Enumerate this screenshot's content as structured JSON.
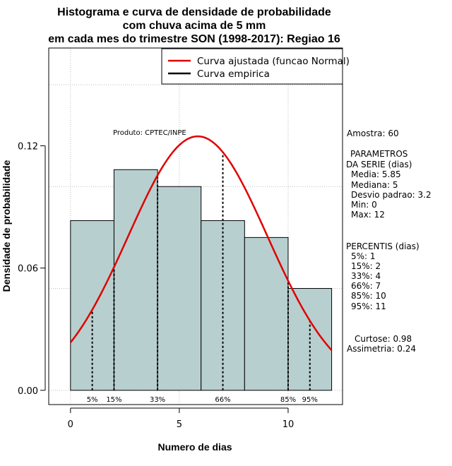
{
  "chart_data": {
    "type": "bar",
    "title_lines": [
      "Histograma e curva de densidade de probabilidade",
      "com chuva acima de 5 mm",
      "em cada mes do trimestre SON (1998-2017): Regiao 16"
    ],
    "xlabel": "Numero de dias",
    "ylabel": "Densidade de probabilidade",
    "xlim": [
      -1,
      12.5
    ],
    "ylim": [
      -0.007,
      0.168
    ],
    "x_ticks": [
      0,
      5,
      10
    ],
    "y_ticks": [
      0.0,
      0.06,
      0.12
    ],
    "y_tick_labels": [
      "0.00",
      "0.06",
      "0.12"
    ],
    "grid_x": [
      0,
      5,
      10
    ],
    "grid_y": [
      0,
      0.05,
      0.1,
      0.15
    ],
    "bins": [
      {
        "x0": 0,
        "x1": 2,
        "density": 0.0833
      },
      {
        "x0": 2,
        "x1": 4,
        "density": 0.1083
      },
      {
        "x0": 4,
        "x1": 6,
        "density": 0.1
      },
      {
        "x0": 6,
        "x1": 8,
        "density": 0.0833
      },
      {
        "x0": 8,
        "x1": 10,
        "density": 0.075
      },
      {
        "x0": 10,
        "x1": 12,
        "density": 0.05
      }
    ],
    "fitted_curve": {
      "name": "Curva ajustada (funcao Normal)",
      "mean": 5.85,
      "sd": 3.2,
      "x_range": [
        0,
        12
      ],
      "color": "#e00000"
    },
    "empirical_curve": {
      "name": "Curva empirica",
      "color": "#000000"
    },
    "percentile_lines": [
      {
        "label": "5%",
        "x": 1
      },
      {
        "label": "15%",
        "x": 2
      },
      {
        "label": "33%",
        "x": 4
      },
      {
        "label": "66%",
        "x": 7
      },
      {
        "label": "85%",
        "x": 10
      },
      {
        "label": "95%",
        "x": 11
      }
    ],
    "annotation": "Produto: CPTEC/INPE",
    "legend_position": "top-right",
    "colors": {
      "bar_fill": "#b8cfcf",
      "bar_stroke": "#000000",
      "grid": "#bbbbbb",
      "axis": "#000000"
    }
  },
  "side_panel": {
    "amostra": "Amostra: 60",
    "parametros_title": "PARAMETROS",
    "serie_title": "DA SERIE (dias)",
    "media": "Media: 5.85",
    "mediana": "Mediana: 5",
    "desvio": "Desvio padrao: 3.2",
    "min": "Min: 0",
    "max": "Max: 12",
    "percentis_title": "PERCENTIS (dias)",
    "p5": "5%: 1",
    "p15": "15%: 2",
    "p33": "33%: 4",
    "p66": "66%: 7",
    "p85": "85%: 10",
    "p95": "95%: 11",
    "curtose": "Curtose: 0.98",
    "assimetria": "Assimetria: 0.24"
  }
}
